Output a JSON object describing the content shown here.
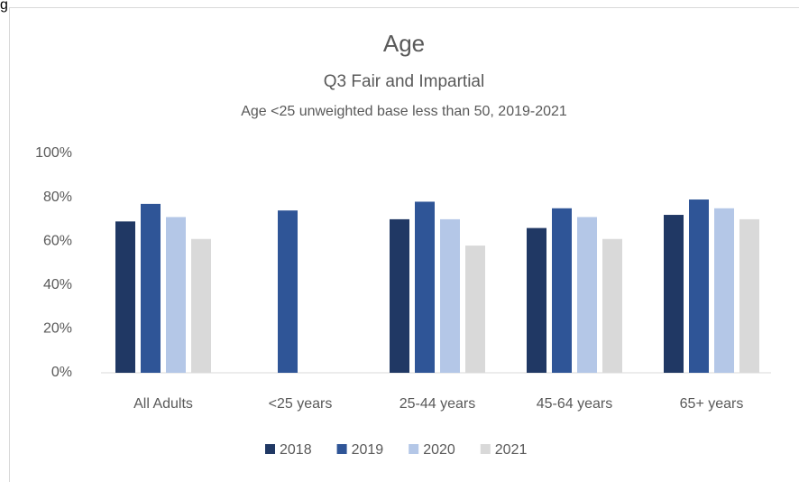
{
  "page_caption": "g",
  "chart_data": {
    "type": "bar",
    "title": "Age",
    "subtitle": "Q3 Fair and Impartial",
    "note": "Age <25 unweighted base less than 50, 2019-2021",
    "categories": [
      "All Adults",
      "<25 years",
      "25-44 years",
      "45-64 years",
      "65+ years"
    ],
    "series": [
      {
        "name": "2018",
        "color": "#203864",
        "values": [
          69,
          null,
          70,
          66,
          72
        ]
      },
      {
        "name": "2019",
        "color": "#2f5597",
        "values": [
          77,
          74,
          78,
          75,
          79
        ]
      },
      {
        "name": "2020",
        "color": "#b4c7e7",
        "values": [
          71,
          null,
          70,
          71,
          75
        ]
      },
      {
        "name": "2021",
        "color": "#d9d9d9",
        "values": [
          61,
          null,
          58,
          61,
          70
        ]
      }
    ],
    "ylim": [
      0,
      100
    ],
    "yticks": [
      {
        "value": 0,
        "label": "0%"
      },
      {
        "value": 20,
        "label": "20%"
      },
      {
        "value": 40,
        "label": "40%"
      },
      {
        "value": 60,
        "label": "60%"
      },
      {
        "value": 80,
        "label": "80%"
      },
      {
        "value": 100,
        "label": "100%"
      }
    ],
    "grid": false,
    "legend": "bottom"
  }
}
